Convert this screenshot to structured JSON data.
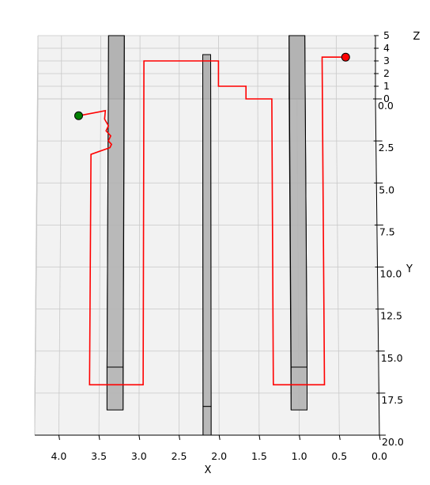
{
  "chart_data": {
    "type": "line3d",
    "axes": {
      "x": {
        "label": "X",
        "lim": [
          0.0,
          4.3
        ],
        "inverted": true,
        "ticks": [
          "4.0",
          "3.5",
          "3.0",
          "2.5",
          "2.0",
          "1.5",
          "1.0",
          "0.5",
          "0.0"
        ],
        "tick_values": [
          4.0,
          3.5,
          3.0,
          2.5,
          2.0,
          1.5,
          1.0,
          0.5,
          0.0
        ]
      },
      "y": {
        "label": "Y",
        "lim": [
          0.0,
          20.0
        ],
        "ticks": [
          "0.0",
          "2.5",
          "5.0",
          "7.5",
          "10.0",
          "12.5",
          "15.0",
          "17.5",
          "20.0"
        ],
        "tick_values": [
          0.0,
          2.5,
          5.0,
          7.5,
          10.0,
          12.5,
          15.0,
          17.5,
          20.0
        ]
      },
      "z": {
        "label": "Z",
        "lim": [
          0,
          5
        ],
        "ticks": [
          "0",
          "1",
          "2",
          "3",
          "4",
          "5"
        ],
        "tick_values": [
          0,
          1,
          2,
          3,
          4,
          5
        ]
      }
    },
    "grid": true,
    "pane_color": "#f2f2f2",
    "grid_color": "#c8c8c8",
    "path": {
      "color": "#ff0000",
      "points": [
        [
          3.78,
          1.0,
          0.0
        ],
        [
          3.44,
          0.7,
          0.0
        ],
        [
          3.45,
          1.2,
          0.0
        ],
        [
          3.4,
          1.6,
          0.0
        ],
        [
          3.43,
          1.9,
          0.0
        ],
        [
          3.37,
          2.2,
          0.0
        ],
        [
          3.4,
          2.5,
          0.0
        ],
        [
          3.36,
          2.7,
          0.0
        ],
        [
          3.38,
          2.9,
          0.0
        ],
        [
          3.62,
          3.3,
          0.0
        ],
        [
          3.62,
          17.0,
          0.0
        ],
        [
          2.95,
          17.0,
          0.0
        ],
        [
          2.95,
          0.0,
          3.0
        ],
        [
          2.0,
          0.0,
          3.0
        ],
        [
          2.0,
          0.0,
          1.0
        ],
        [
          1.65,
          0.0,
          1.0
        ],
        [
          1.65,
          0.0,
          0.0
        ],
        [
          1.32,
          0.0,
          0.0
        ],
        [
          1.32,
          17.0,
          0.0
        ],
        [
          0.68,
          17.0,
          0.0
        ],
        [
          0.68,
          0.0,
          3.3
        ],
        [
          0.38,
          0.0,
          3.3
        ]
      ]
    },
    "start": {
      "point": [
        3.78,
        1.0,
        0.0
      ],
      "color": "#008000"
    },
    "end": {
      "point": [
        0.38,
        0.0,
        3.3
      ],
      "color": "#ff0000"
    },
    "obstacles": [
      {
        "x": [
          3.2,
          3.4
        ],
        "y": [
          0.0,
          18.5
        ],
        "z": [
          0.0,
          5.0
        ],
        "color": "#b2b2b2"
      },
      {
        "x": [
          2.1,
          2.2
        ],
        "y": [
          0.0,
          20.0
        ],
        "z": [
          0.0,
          3.5
        ],
        "color": "#b2b2b2"
      },
      {
        "x": [
          0.9,
          1.1
        ],
        "y": [
          0.0,
          18.5
        ],
        "z": [
          0.0,
          5.0
        ],
        "color": "#b2b2b2"
      }
    ]
  }
}
